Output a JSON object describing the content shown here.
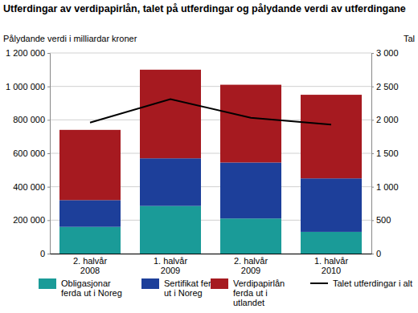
{
  "chart_data": {
    "type": "bar",
    "title": "Utferdingar av verdipapirlån, talet på utferdingar og pålydande verdi av utferdingane",
    "y_label": "Pålydande verdi i milliardar kroner",
    "y2_label": "Tal",
    "categories": [
      "2. halvår 2008",
      "1. halvår 2009",
      "2. halvår 2009",
      "1. halvår 2010"
    ],
    "stacked": true,
    "grid": true,
    "legend": "bottom",
    "ylim": [
      0,
      1200000
    ],
    "yticks": [
      0,
      {
        "value": 200000,
        "label": "200 000"
      },
      {
        "value": 400000,
        "label": "400 000"
      },
      {
        "value": 600000,
        "label": "600 000"
      },
      {
        "value": 800000,
        "label": "800 000"
      },
      {
        "value": 1000000,
        "label": "1 000 000"
      },
      {
        "value": 1200000,
        "label": "1 200 000"
      }
    ],
    "y2lim": [
      0,
      3000
    ],
    "y2ticks": [
      0,
      500,
      {
        "value": 1000,
        "label": "1 000"
      },
      {
        "value": 1500,
        "label": "1 500"
      },
      {
        "value": 2000,
        "label": "2 000"
      },
      {
        "value": 2500,
        "label": "2 500"
      },
      {
        "value": 3000,
        "label": "3 000"
      }
    ],
    "series": [
      {
        "name": "Obligasjonar ferda ut i Noreg",
        "color": "#1a9b98",
        "values": [
          160000,
          285000,
          210000,
          130000
        ]
      },
      {
        "name": "Sertifikat ferda ut i Noreg",
        "color": "#1d3f9a",
        "values": [
          160000,
          285000,
          335000,
          320000
        ]
      },
      {
        "name": "Verdipapirlån ferda ut i utlandet",
        "color": "#a61a20",
        "values": [
          420000,
          530000,
          465000,
          500000
        ]
      },
      {
        "name": "Talet utferdingar i alt",
        "type": "line",
        "axis": "y2",
        "color": "#000000",
        "values": [
          1960,
          2310,
          2030,
          1930
        ]
      }
    ]
  }
}
